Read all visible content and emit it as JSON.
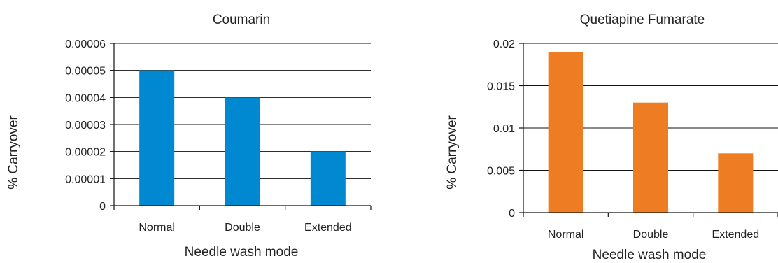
{
  "chart_data": [
    {
      "type": "bar",
      "title": "Coumarin",
      "xlabel": "Needle wash mode",
      "ylabel": "% Carryover",
      "categories": [
        "Normal",
        "Double",
        "Extended"
      ],
      "values": [
        5e-05,
        4e-05,
        2e-05
      ],
      "ylim": [
        0,
        6e-05
      ],
      "yticks": [
        "0",
        "0.00001",
        "0.00002",
        "0.00003",
        "0.00004",
        "0.00005",
        "0.00006"
      ],
      "grid": true,
      "color": "#0088d1"
    },
    {
      "type": "bar",
      "title": "Quetiapine Fumarate",
      "xlabel": "Needle wash mode",
      "ylabel": "% Carryover",
      "categories": [
        "Normal",
        "Double",
        "Extended"
      ],
      "values": [
        0.019,
        0.013,
        0.007
      ],
      "ylim": [
        0,
        0.02
      ],
      "yticks": [
        "0",
        "0.005",
        "0.01",
        "0.015",
        "0.02"
      ],
      "grid": true,
      "color": "#ee7c22"
    }
  ]
}
